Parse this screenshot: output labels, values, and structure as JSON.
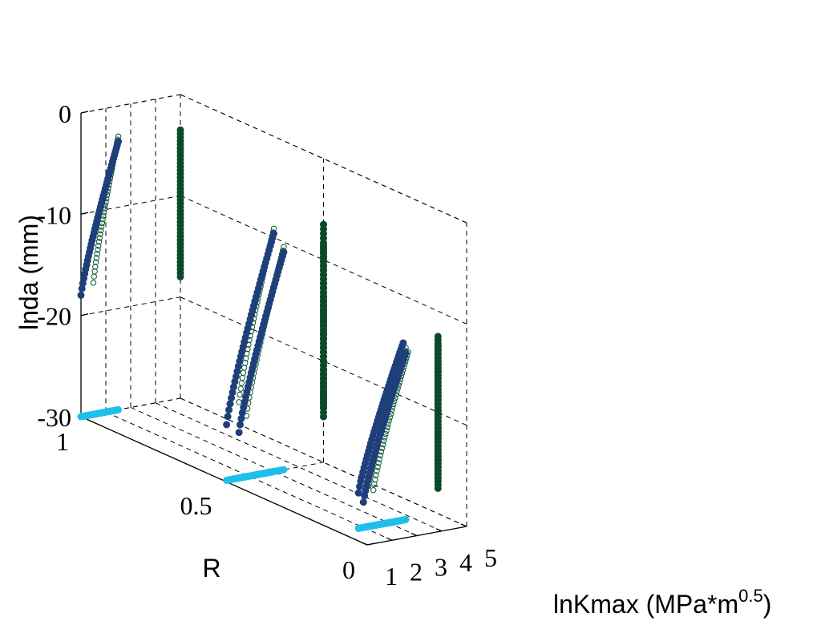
{
  "chart_data": {
    "type": "scatter",
    "view": "3d",
    "grid": true,
    "xlabel": "lnKmax (MPa*m",
    "xlabel_sup": "0.5",
    "xlabel_close": ")",
    "ylabel": "R",
    "zlabel": "lnda (mm)",
    "xlim": [
      1,
      5
    ],
    "ylim": [
      0,
      1
    ],
    "zlim": [
      -30,
      0
    ],
    "x_ticks": [
      "1",
      "2",
      "3",
      "4",
      "5"
    ],
    "y_ticks": [
      "0",
      "0.5",
      "1"
    ],
    "z_ticks": [
      "-30",
      "-20",
      "-10",
      "0"
    ],
    "colors": {
      "fit_points": "#1f3f7a",
      "experimental_points": "#0a5a32",
      "projection_floor": "#1ec0ea",
      "projection_wall": "#0a4a2a"
    },
    "series": [
      {
        "marker": "filled-circle",
        "role": "fitted points",
        "curves": [
          {
            "R": 0.1,
            "x": [
              1.8,
              3.6
            ],
            "z": [
              -26.5,
              -12.5
            ]
          },
          {
            "R": 0.1,
            "x": [
              2.0,
              3.7
            ],
            "z": [
              -27.5,
              -13.5
            ]
          },
          {
            "R": 0.5,
            "x": [
              1.6,
              3.4
            ],
            "z": [
              -25.5,
              -8.5
            ]
          },
          {
            "R": 0.5,
            "x": [
              1.1,
              3.0
            ],
            "z": [
              -24.5,
              -6.5
            ]
          },
          {
            "R": 1.0,
            "x": [
              1.0,
              2.5
            ],
            "z": [
              -18.0,
              -3.5
            ]
          }
        ]
      },
      {
        "marker": "open-circle",
        "role": "experimental points",
        "curves": [
          {
            "R": 0.1,
            "x": [
              2.2,
              3.7
            ],
            "z": [
              -26.0,
              -13.0
            ]
          },
          {
            "R": 0.1,
            "x": [
              2.4,
              3.8
            ],
            "z": [
              -26.5,
              -13.5
            ]
          },
          {
            "R": 0.5,
            "x": [
              1.9,
              3.4
            ],
            "z": [
              -24.0,
              -8.0
            ]
          },
          {
            "R": 0.5,
            "x": [
              1.6,
              3.0
            ],
            "z": [
              -22.5,
              -6.0
            ]
          },
          {
            "R": 1.0,
            "x": [
              1.5,
              2.5
            ],
            "z": [
              -17.0,
              -3.0
            ]
          }
        ]
      },
      {
        "marker": "filled-circle",
        "role": "projection on R-lnKmax plane",
        "curves": [
          {
            "R": 0.1,
            "x": [
              1.8,
              3.6
            ],
            "z": [
              -30,
              -30
            ]
          },
          {
            "R": 0.1,
            "x": [
              2.0,
              3.7
            ],
            "z": [
              -30,
              -30
            ]
          },
          {
            "R": 0.5,
            "x": [
              1.6,
              3.4
            ],
            "z": [
              -30,
              -30
            ]
          },
          {
            "R": 0.5,
            "x": [
              1.1,
              3.0
            ],
            "z": [
              -30,
              -30
            ]
          },
          {
            "R": 1.0,
            "x": [
              1.0,
              2.5
            ],
            "z": [
              -30,
              -30
            ]
          }
        ]
      },
      {
        "marker": "filled-circle",
        "role": "projection on R-lnda plane",
        "curves": [
          {
            "R": 0.1,
            "x": [
              5,
              5
            ],
            "z": [
              -27.5,
              -13.5
            ]
          },
          {
            "R": 0.1,
            "x": [
              5,
              5
            ],
            "z": [
              -26.5,
              -12.5
            ]
          },
          {
            "R": 0.5,
            "x": [
              5,
              5
            ],
            "z": [
              -25.5,
              -8.5
            ]
          },
          {
            "R": 0.5,
            "x": [
              5,
              5
            ],
            "z": [
              -24.5,
              -6.5
            ]
          },
          {
            "R": 1.0,
            "x": [
              5,
              5
            ],
            "z": [
              -18.0,
              -3.5
            ]
          }
        ]
      }
    ]
  }
}
